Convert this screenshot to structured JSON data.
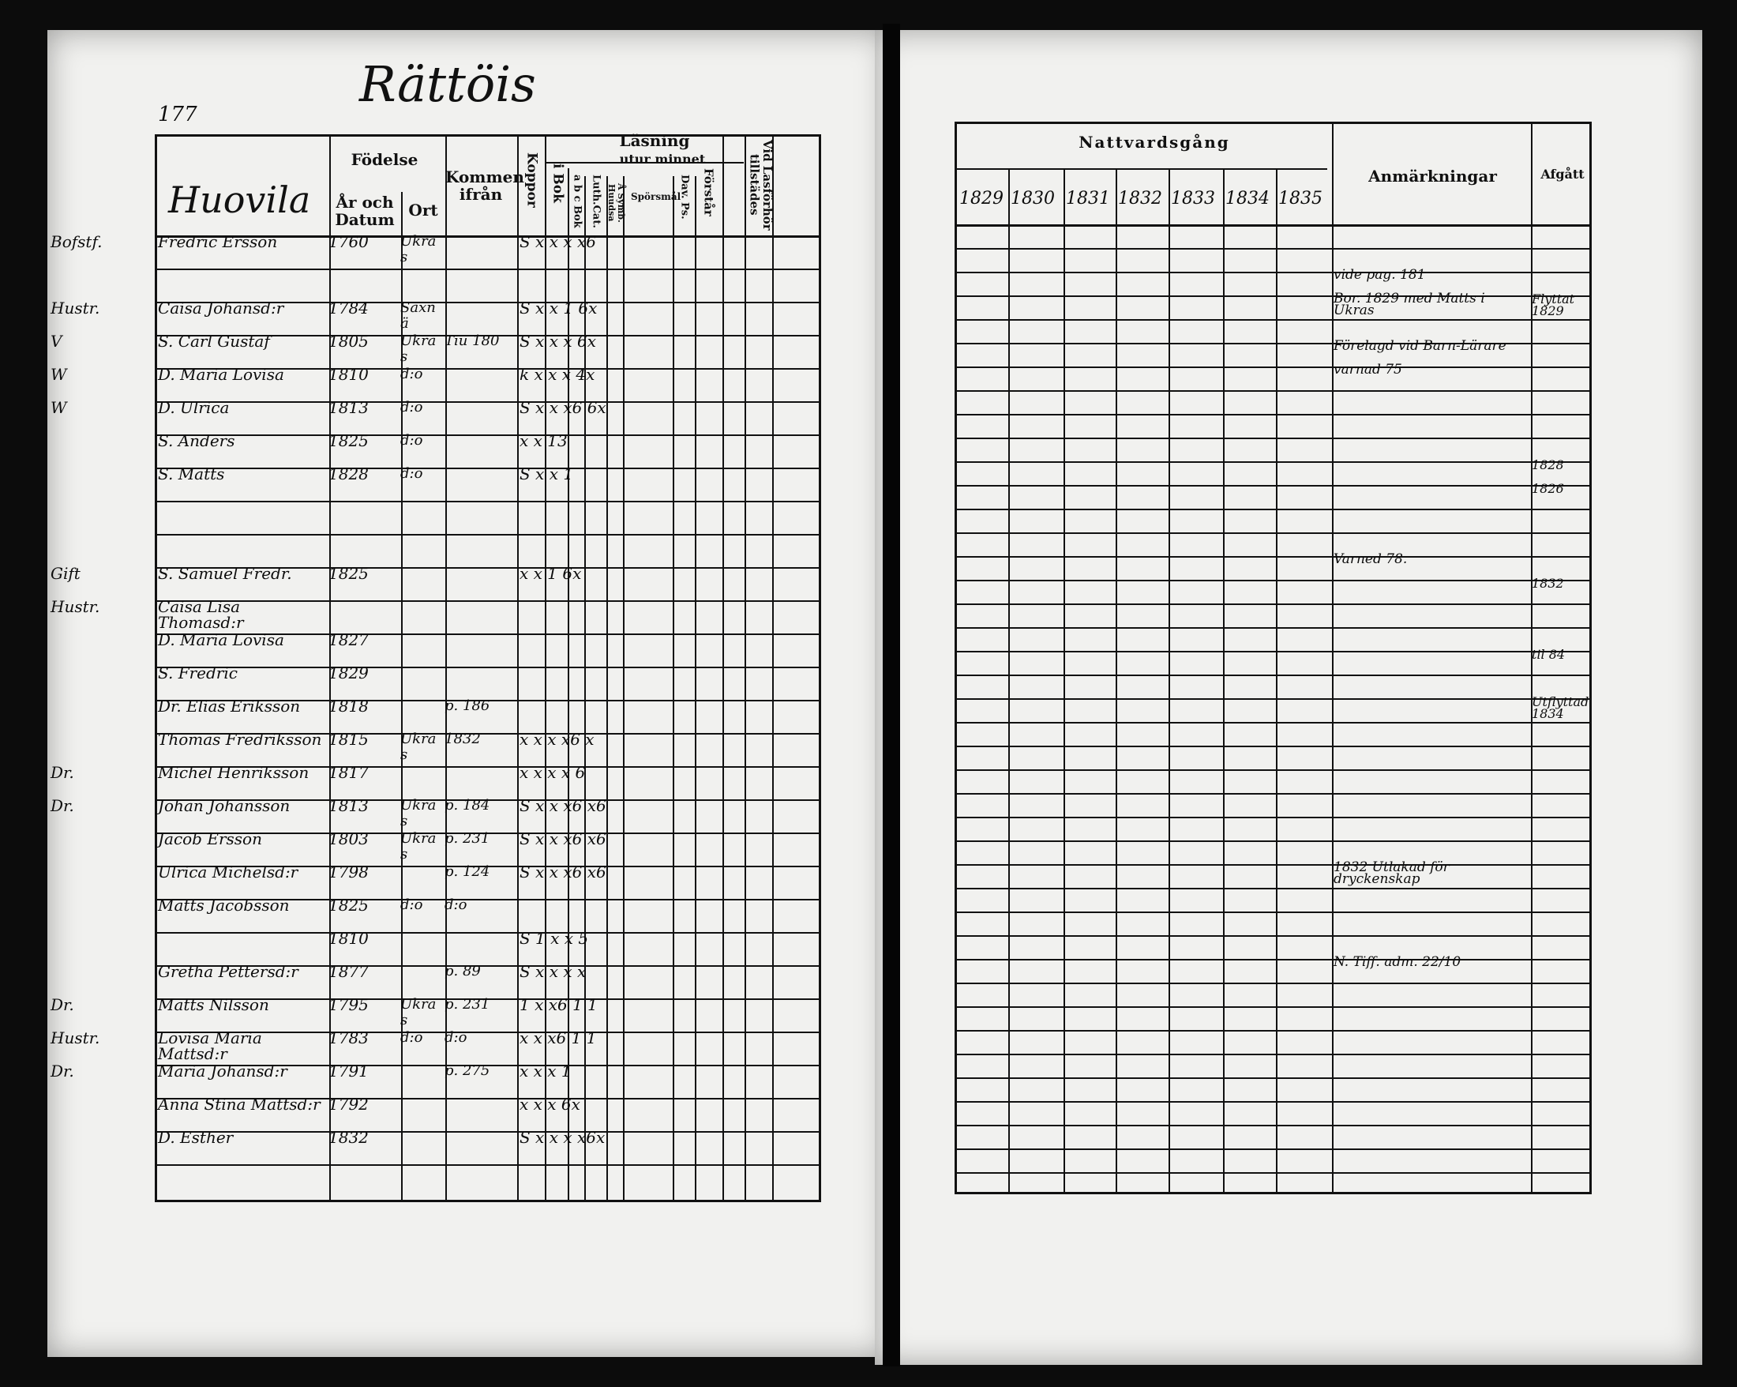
{
  "left_page": {
    "title": "Rättöis",
    "page_number": "177",
    "village": "Huovila",
    "headers": {
      "birth": "Födelse",
      "year_date": "År och Datum",
      "place": "Ort",
      "came_from": "Kommen ifrån",
      "smallpox": "Koppor",
      "reading": "Läsning",
      "by_heart": "utur minnet",
      "in_book": "i Bok",
      "abc_book": "a b c Bok",
      "luth_cat": "Luth.Cat.",
      "symb": "Å Symb. Huudsa",
      "questions": "Spörsmål",
      "dav_ps": "Dav. Ps.",
      "understands": "Förstår",
      "communion_admitted": "Vid Lasförhör tillstädes"
    },
    "entries": [
      {
        "row": 0,
        "margin": "Bofstf.",
        "name": "Fredric Ersson",
        "birth": "1760",
        "place": "Ukras",
        "from": "",
        "marks": "S x x x x6"
      },
      {
        "row": 2,
        "margin": "Hustr.",
        "name": "Caisa Johansd:r",
        "birth": "1784",
        "place": "Saxnä",
        "from": "",
        "marks": "S x x 1 6x"
      },
      {
        "row": 3,
        "margin": "V",
        "name": "S. Carl Gustaf",
        "birth": "1805",
        "place": "Ukras",
        "from": "Tiu 180",
        "marks": "S x x x 6x"
      },
      {
        "row": 4,
        "margin": "W",
        "name": "D. Maria Lovisa",
        "birth": "1810",
        "place": "d:o",
        "from": "",
        "marks": "k x x x 4x"
      },
      {
        "row": 5,
        "margin": "W",
        "name": "D. Ulrica",
        "birth": "1813",
        "place": "d:o",
        "from": "",
        "marks": "S x x x6 6x"
      },
      {
        "row": 6,
        "margin": "",
        "name": "S. Anders",
        "birth": "1825",
        "place": "d:o",
        "from": "",
        "marks": "x x 13"
      },
      {
        "row": 7,
        "margin": "",
        "name": "S. Matts",
        "birth": "1828",
        "place": "d:o",
        "from": "",
        "marks": "S x x 1"
      },
      {
        "row": 10,
        "margin": "Gift",
        "name": "S. Samuel Fredr.",
        "birth": "1825",
        "place": "",
        "from": "",
        "marks": "x x 1 6x"
      },
      {
        "row": 11,
        "margin": "Hustr.",
        "name": "Caisa Lisa Thomasd:r",
        "birth": "",
        "place": "",
        "from": "",
        "marks": ""
      },
      {
        "row": 12,
        "margin": "",
        "name": "D. Maria Lovisa",
        "birth": "1827",
        "place": "",
        "from": "",
        "marks": ""
      },
      {
        "row": 13,
        "margin": "",
        "name": "S. Fredric",
        "birth": "1829",
        "place": "",
        "from": "",
        "marks": ""
      },
      {
        "row": 14,
        "margin": "",
        "name": "Dr. Elias Eriksson",
        "birth": "1818",
        "place": "",
        "from": "p. 186",
        "marks": ""
      },
      {
        "row": 15,
        "margin": "",
        "name": "Thomas Fredriksson",
        "birth": "1815",
        "place": "Ukras",
        "from": "1832",
        "marks": "x x x x6 x"
      },
      {
        "row": 16,
        "margin": "Dr.",
        "name": "Michel Henriksson",
        "birth": "1817",
        "place": "",
        "from": "",
        "marks": "x x x x 6"
      },
      {
        "row": 17,
        "margin": "Dr.",
        "name": "Johan Johansson",
        "birth": "1813",
        "place": "Ukras",
        "from": "p. 184",
        "marks": "S x x x6 x6"
      },
      {
        "row": 18,
        "margin": "",
        "name": "Jacob Ersson",
        "birth": "1803",
        "place": "Ukras",
        "from": "p. 231",
        "marks": "S x x x6 x6"
      },
      {
        "row": 19,
        "margin": "",
        "name": "Ulrica Michelsd:r",
        "birth": "1798",
        "place": "",
        "from": "p. 124",
        "marks": "S x x x6 x6"
      },
      {
        "row": 20,
        "margin": "",
        "name": "Matts Jacobsson",
        "birth": "1825",
        "place": "d:o",
        "from": "d:o",
        "marks": ""
      },
      {
        "row": 21,
        "margin": "",
        "name": "",
        "birth": "1810",
        "place": "",
        "from": "",
        "marks": "S 1 x x 5"
      },
      {
        "row": 22,
        "margin": "",
        "name": "Gretha Pettersd:r",
        "birth": "1877",
        "place": "",
        "from": "p. 89",
        "marks": "S x x x x"
      },
      {
        "row": 23,
        "margin": "Dr.",
        "name": "Matts Nilsson",
        "birth": "1795",
        "place": "Ukras",
        "from": "p. 231",
        "marks": "1 x x6 1 1"
      },
      {
        "row": 24,
        "margin": "Hustr.",
        "name": "Lovisa Maria Mattsd:r",
        "birth": "1783",
        "place": "d:o",
        "from": "d:o",
        "marks": "x x x6 1 1"
      },
      {
        "row": 25,
        "margin": "Dr.",
        "name": "Maria Johansd:r",
        "birth": "1791",
        "place": "",
        "from": "p. 275",
        "marks": "x x x 1"
      },
      {
        "row": 26,
        "margin": "",
        "name": "Anna Stina Mattsd:r",
        "birth": "1792",
        "place": "",
        "from": "",
        "marks": "x x x 6x"
      },
      {
        "row": 27,
        "margin": "",
        "name": "D. Esther",
        "birth": "1832",
        "place": "",
        "from": "",
        "marks": "S x x x x6x"
      }
    ]
  },
  "right_page": {
    "headers": {
      "communion": "Nattvardsgång",
      "years": [
        "1829",
        "1830",
        "1831",
        "1832",
        "1833",
        "1834",
        "1835"
      ],
      "remarks": "Anmärkningar",
      "departed": "Afgått"
    },
    "remarks": [
      {
        "row": 2,
        "text": "vide pag. 181"
      },
      {
        "row": 3,
        "text": "Bor. 1829 med Matts i Ukras"
      },
      {
        "row": 5,
        "text": "Förelagd vid Barn-Lärare"
      },
      {
        "row": 6,
        "text": "varnad 75"
      },
      {
        "row": 14,
        "text": "Varned 78."
      },
      {
        "row": 27,
        "text": "1832 Utlakad för dryckenskap"
      },
      {
        "row": 31,
        "text": "N. Tiff. adm. 22/10"
      }
    ],
    "departed": [
      {
        "row": 3,
        "text": "Flyttat 1829"
      },
      {
        "row": 10,
        "text": "1828"
      },
      {
        "row": 11,
        "text": "1826"
      },
      {
        "row": 15,
        "text": "1832"
      },
      {
        "row": 18,
        "text": "til 84"
      },
      {
        "row": 20,
        "text": "Utflyttad 1834"
      }
    ]
  }
}
